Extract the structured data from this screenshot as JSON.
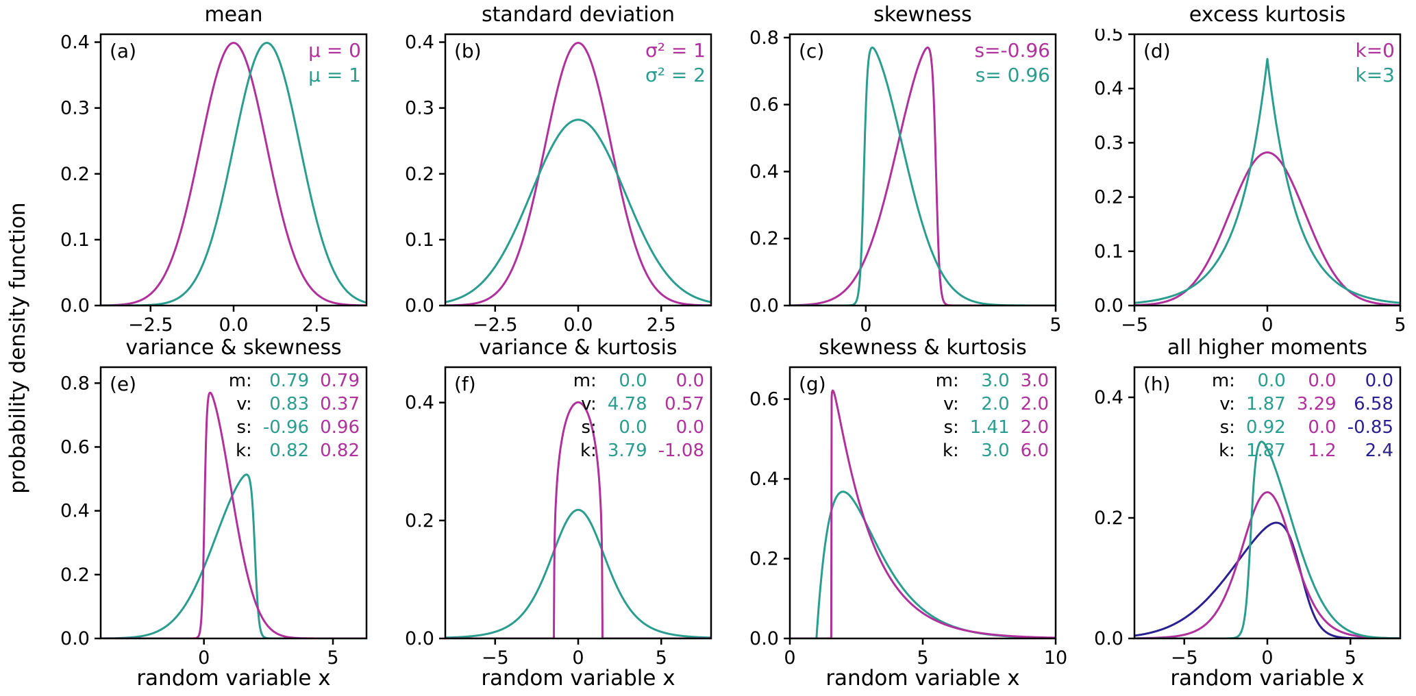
{
  "figure": {
    "ylabel": "probability density function",
    "xlabel": "random variable x",
    "background": "#ffffff",
    "colors": {
      "magenta": "#b0309c",
      "teal": "#2a9d8f",
      "navy": "#2b2092",
      "axis": "#000000"
    }
  },
  "chart_data": {
    "type": "line",
    "layout": "2x4 grid of probability density subplots",
    "shared_ylabel": "probability density function",
    "shared_xlabel": "random variable x",
    "panels": [
      {
        "letter": "(a)",
        "title": "mean",
        "xlim": [
          -4,
          4
        ],
        "ylim": [
          0,
          0.412
        ],
        "xticks": [
          {
            "v": -2.5,
            "label": "−2.5"
          },
          {
            "v": 0,
            "label": "0.0"
          },
          {
            "v": 2.5,
            "label": "2.5"
          }
        ],
        "yticks": [
          {
            "v": 0,
            "label": "0.0"
          },
          {
            "v": 0.1,
            "label": "0.1"
          },
          {
            "v": 0.2,
            "label": "0.2"
          },
          {
            "v": 0.3,
            "label": "0.3"
          },
          {
            "v": 0.4,
            "label": "0.4"
          }
        ],
        "legend": {
          "style": "lines",
          "items": [
            {
              "text": "μ = 0",
              "color": "magenta"
            },
            {
              "text": "μ = 1",
              "color": "teal"
            }
          ]
        },
        "curves": [
          {
            "name": "normal-mu0",
            "family": "normal",
            "color": "magenta",
            "params": {
              "mu": 0,
              "sigma": 1
            }
          },
          {
            "name": "normal-mu1",
            "family": "normal",
            "color": "teal",
            "params": {
              "mu": 1,
              "sigma": 1
            }
          }
        ]
      },
      {
        "letter": "(b)",
        "title": "standard deviation",
        "xlim": [
          -4,
          4
        ],
        "ylim": [
          0,
          0.412
        ],
        "xticks": [
          {
            "v": -2.5,
            "label": "−2.5"
          },
          {
            "v": 0,
            "label": "0.0"
          },
          {
            "v": 2.5,
            "label": "2.5"
          }
        ],
        "yticks": [
          {
            "v": 0,
            "label": "0.0"
          },
          {
            "v": 0.1,
            "label": "0.1"
          },
          {
            "v": 0.2,
            "label": "0.2"
          },
          {
            "v": 0.3,
            "label": "0.3"
          },
          {
            "v": 0.4,
            "label": "0.4"
          }
        ],
        "legend": {
          "style": "lines",
          "items": [
            {
              "text": "σ² = 1",
              "color": "magenta"
            },
            {
              "text": "σ² = 2",
              "color": "teal"
            }
          ]
        },
        "curves": [
          {
            "name": "normal-var1",
            "family": "normal",
            "color": "magenta",
            "params": {
              "mu": 0,
              "sigma": 1
            }
          },
          {
            "name": "normal-var2",
            "family": "normal",
            "color": "teal",
            "params": {
              "mu": 0,
              "sigma": 1.414
            }
          }
        ]
      },
      {
        "letter": "(c)",
        "title": "skewness",
        "xlim": [
          -2,
          5
        ],
        "ylim": [
          0,
          0.81
        ],
        "xticks": [
          {
            "v": 0,
            "label": "0"
          },
          {
            "v": 5,
            "label": "5"
          }
        ],
        "yticks": [
          {
            "v": 0,
            "label": "0.0"
          },
          {
            "v": 0.2,
            "label": "0.2"
          },
          {
            "v": 0.4,
            "label": "0.4"
          },
          {
            "v": 0.6,
            "label": "0.6"
          },
          {
            "v": 0.8,
            "label": "0.8"
          }
        ],
        "legend": {
          "style": "lines",
          "items": [
            {
              "text": "s=-0.96",
              "color": "magenta"
            },
            {
              "text": "s= 0.96",
              "color": "teal"
            }
          ]
        },
        "curves": [
          {
            "name": "skew-negative",
            "family": "skewnormal",
            "color": "magenta",
            "params": {
              "xi": 1.85,
              "omega": 1.0,
              "alpha": -12
            }
          },
          {
            "name": "skew-positive",
            "family": "skewnormal",
            "color": "teal",
            "params": {
              "xi": -0.05,
              "omega": 1.0,
              "alpha": 12
            }
          }
        ]
      },
      {
        "letter": "(d)",
        "title": "excess kurtosis",
        "xlim": [
          -5,
          5
        ],
        "ylim": [
          0,
          0.5
        ],
        "xticks": [
          {
            "v": -5,
            "label": "−5"
          },
          {
            "v": 0,
            "label": "0"
          },
          {
            "v": 5,
            "label": "5"
          }
        ],
        "yticks": [
          {
            "v": 0,
            "label": "0.0"
          },
          {
            "v": 0.1,
            "label": "0.1"
          },
          {
            "v": 0.2,
            "label": "0.2"
          },
          {
            "v": 0.3,
            "label": "0.3"
          },
          {
            "v": 0.4,
            "label": "0.4"
          },
          {
            "v": 0.5,
            "label": "0.5"
          }
        ],
        "legend": {
          "style": "lines",
          "items": [
            {
              "text": "k=0",
              "color": "magenta"
            },
            {
              "text": "k=3",
              "color": "teal"
            }
          ]
        },
        "curves": [
          {
            "name": "kurtosis-0-normal",
            "family": "normal",
            "color": "magenta",
            "params": {
              "mu": 0,
              "sigma": 1.414
            }
          },
          {
            "name": "kurtosis-3-laplace",
            "family": "laplace",
            "color": "teal",
            "params": {
              "mu": 0,
              "b": 1.1
            }
          }
        ]
      },
      {
        "letter": "(e)",
        "title": "variance & skewness",
        "xlim": [
          -4,
          6.3
        ],
        "ylim": [
          0,
          0.85
        ],
        "xticks": [
          {
            "v": 0,
            "label": "0"
          },
          {
            "v": 5,
            "label": "5"
          }
        ],
        "yticks": [
          {
            "v": 0,
            "label": "0.0"
          },
          {
            "v": 0.2,
            "label": "0.2"
          },
          {
            "v": 0.4,
            "label": "0.4"
          },
          {
            "v": 0.6,
            "label": "0.6"
          },
          {
            "v": 0.8,
            "label": "0.8"
          }
        ],
        "legend": {
          "style": "table",
          "row_labels": [
            "m:",
            "v:",
            "s:",
            "k:"
          ],
          "columns": [
            {
              "color": "teal",
              "values": [
                "0.79",
                "0.83",
                "-0.96",
                "0.82"
              ]
            },
            {
              "color": "magenta",
              "values": [
                "0.79",
                "0.37",
                "0.96",
                "0.82"
              ]
            }
          ]
        },
        "curves": [
          {
            "name": "broad-left-skew",
            "family": "skewnormal",
            "color": "teal",
            "params": {
              "xi": 1.98,
              "omega": 1.5,
              "alpha": -12
            }
          },
          {
            "name": "narrow-right-skew",
            "family": "skewnormal",
            "color": "magenta",
            "params": {
              "xi": 0.02,
              "omega": 1.0,
              "alpha": 12
            }
          }
        ]
      },
      {
        "letter": "(f)",
        "title": "variance & kurtosis",
        "xlim": [
          -8,
          8
        ],
        "ylim": [
          0,
          0.46
        ],
        "xticks": [
          {
            "v": -5,
            "label": "−5"
          },
          {
            "v": 0,
            "label": "0"
          },
          {
            "v": 5,
            "label": "5"
          }
        ],
        "yticks": [
          {
            "v": 0,
            "label": "0.0"
          },
          {
            "v": 0.2,
            "label": "0.2"
          },
          {
            "v": 0.4,
            "label": "0.4"
          }
        ],
        "legend": {
          "style": "table",
          "row_labels": [
            "m:",
            "v:",
            "s:",
            "k:"
          ],
          "columns": [
            {
              "color": "teal",
              "values": [
                "0.0",
                "4.78",
                "0.0",
                "3.79"
              ]
            },
            {
              "color": "magenta",
              "values": [
                "0.0",
                "0.57",
                "0.0",
                "-1.08"
              ]
            }
          ]
        },
        "curves": [
          {
            "name": "heavy-tails",
            "family": "student",
            "color": "teal",
            "params": {
              "nu": 5.6,
              "scale": 1.75,
              "loc": 0
            }
          },
          {
            "name": "flat-top",
            "family": "betasym",
            "color": "magenta",
            "params": {
              "center": 0,
              "half": 1.45,
              "alpha": 1.28
            }
          }
        ]
      },
      {
        "letter": "(g)",
        "title": "skewness & kurtosis",
        "xlim": [
          0,
          10
        ],
        "ylim": [
          0,
          0.68
        ],
        "xticks": [
          {
            "v": 0,
            "label": "0"
          },
          {
            "v": 5,
            "label": "5"
          },
          {
            "v": 10,
            "label": "10"
          }
        ],
        "yticks": [
          {
            "v": 0,
            "label": "0.0"
          },
          {
            "v": 0.2,
            "label": "0.2"
          },
          {
            "v": 0.4,
            "label": "0.4"
          },
          {
            "v": 0.6,
            "label": "0.6"
          }
        ],
        "legend": {
          "style": "table",
          "row_labels": [
            "m:",
            "v:",
            "s:",
            "k:"
          ],
          "columns": [
            {
              "color": "teal",
              "values": [
                "3.0",
                "2.0",
                "1.41",
                "3.0"
              ]
            },
            {
              "color": "magenta",
              "values": [
                "3.0",
                "2.0",
                "2.0",
                "6.0"
              ]
            }
          ]
        },
        "curves": [
          {
            "name": "gamma-mild-skew",
            "family": "gamma",
            "color": "teal",
            "params": {
              "k": 2,
              "theta": 1,
              "loc": 1
            }
          },
          {
            "name": "gamma-strong-skew",
            "family": "gamma",
            "color": "magenta",
            "params": {
              "k": 1.04,
              "theta": 1.387,
              "loc": 1.558
            }
          }
        ]
      },
      {
        "letter": "(h)",
        "title": "all higher moments",
        "xlim": [
          -8,
          8
        ],
        "ylim": [
          0,
          0.45
        ],
        "xticks": [
          {
            "v": -5,
            "label": "−5"
          },
          {
            "v": 0,
            "label": "0"
          },
          {
            "v": 5,
            "label": "5"
          }
        ],
        "yticks": [
          {
            "v": 0,
            "label": "0.0"
          },
          {
            "v": 0.2,
            "label": "0.2"
          },
          {
            "v": 0.4,
            "label": "0.4"
          }
        ],
        "legend": {
          "style": "table",
          "row_labels": [
            "m:",
            "v:",
            "s:",
            "k:"
          ],
          "columns": [
            {
              "color": "teal",
              "values": [
                "0.0",
                "1.87",
                "0.92",
                "1.87"
              ]
            },
            {
              "color": "magenta",
              "values": [
                "0.0",
                "3.29",
                "0.0",
                "1.2"
              ]
            },
            {
              "color": "navy",
              "values": [
                "0.0",
                "6.58",
                "-0.85",
                "2.4"
              ]
            }
          ]
        },
        "curves": [
          {
            "name": "broad-left-skewed",
            "family": "skewnormal",
            "color": "navy",
            "params": {
              "xi": 2.0,
              "omega": 3.6,
              "alpha": -4
            }
          },
          {
            "name": "symmetric-leptokurtic",
            "family": "student",
            "color": "magenta",
            "params": {
              "nu": 9,
              "scale": 1.6,
              "loc": 0
            }
          },
          {
            "name": "narrow-right-skewed",
            "family": "skewnormal",
            "color": "teal",
            "params": {
              "xi": -1.0,
              "omega": 2.3,
              "alpha": 8
            }
          }
        ]
      }
    ]
  }
}
